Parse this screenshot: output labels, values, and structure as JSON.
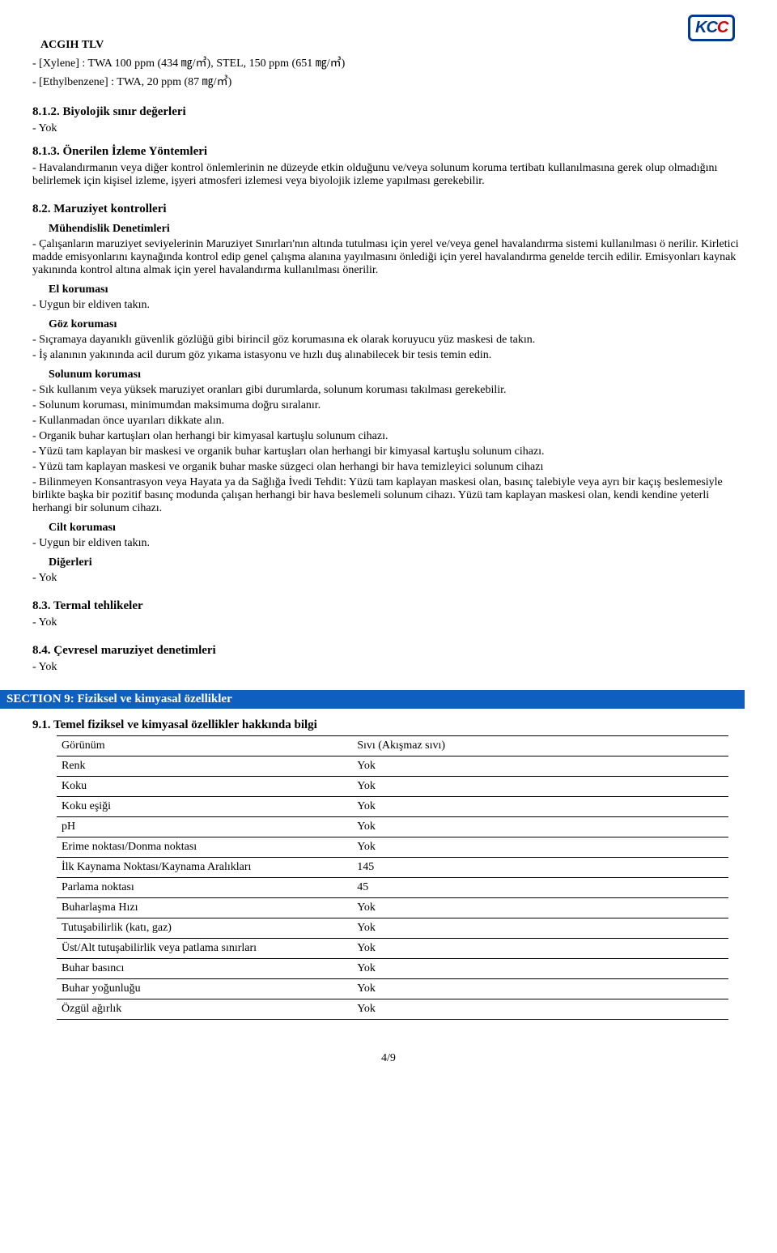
{
  "logo": {
    "k": "K",
    "c1": "C",
    "c2": "C"
  },
  "s81": {
    "tlv_title": "ACGIH TLV",
    "tlv_items": [
      "- [Xylene] : TWA 100 ppm (434 ㎎/㎥), STEL, 150 ppm (651 ㎎/㎥)",
      "- [Ethylbenzene] : TWA, 20 ppm (87 ㎎/㎥)"
    ],
    "s812_title": "8.1.2. Biyolojik sınır değerleri",
    "s812_items": [
      "- Yok"
    ],
    "s813_title": "8.1.3. Önerilen İzleme Yöntemleri",
    "s813_items": [
      "- Havalandırmanın veya diğer kontrol önlemlerinin ne düzeyde etkin olduğunu ve/veya solunum koruma tertibatı kullanılmasına gerek olup olmadığını belirlemek için kişisel izleme, işyeri atmosferi izlemesi veya biyolojik izleme yapılması gerekebilir."
    ]
  },
  "s82": {
    "title": "8.2. Maruziyet kontrolleri",
    "engineering_title": "Mühendislik Denetimleri",
    "engineering_items": [
      "- Çalışanların maruziyet seviyelerinin Maruziyet Sınırları'nın altında tutulması için yerel ve/veya genel havalandırma sistemi kullanılması ö nerilir. Kirletici madde emisyonlarını kaynağında kontrol edip genel çalışma alanına yayılmasını önlediği için yerel havalandırma genelde tercih edilir. Emisyonları kaynak yakınında kontrol altına almak için yerel havalandırma kullanılması önerilir."
    ],
    "hand_title": "El koruması",
    "hand_items": [
      "- Uygun bir eldiven takın."
    ],
    "eye_title": "Göz koruması",
    "eye_items": [
      "- Sıçramaya dayanıklı güvenlik gözlüğü gibi birincil göz korumasına ek olarak koruyucu yüz maskesi de takın.",
      "- İş alanının yakınında acil durum göz yıkama istasyonu ve hızlı duş alınabilecek bir tesis temin edin."
    ],
    "resp_title": "Solunum koruması",
    "resp_items": [
      "- Sık kullanım veya yüksek maruziyet oranları gibi durumlarda, solunum koruması takılması gerekebilir.",
      "- Solunum koruması, minimumdan maksimuma doğru sıralanır.",
      "- Kullanmadan önce uyarıları dikkate alın.",
      "- Organik buhar kartuşları olan herhangi bir kimyasal kartuşlu solunum cihazı.",
      "- Yüzü tam kaplayan bir maskesi ve organik buhar kartuşları olan herhangi bir kimyasal kartuşlu solunum cihazı.",
      "- Yüzü tam kaplayan maskesi ve organik buhar maske süzgeci olan herhangi bir hava temizleyici solunum cihazı",
      "- Bilinmeyen Konsantrasyon veya Hayata ya da Sağlığa İvedi Tehdit: Yüzü tam kaplayan maskesi olan, basınç talebiyle veya ayrı bir kaçış beslemesiyle birlikte başka bir pozitif basınç modunda çalışan herhangi bir hava beslemeli solunum cihazı. Yüzü tam kaplayan maskesi olan, kendi kendine yeterli herhangi bir solunum cihazı."
    ],
    "skin_title": "Cilt koruması",
    "skin_items": [
      "- Uygun bir eldiven takın."
    ],
    "other_title": "Diğerleri",
    "other_items": [
      "- Yok"
    ]
  },
  "s83": {
    "title": "8.3. Termal tehlikeler",
    "items": [
      "- Yok"
    ]
  },
  "s84": {
    "title": "8.4. Çevresel maruziyet denetimleri",
    "items": [
      "- Yok"
    ]
  },
  "section9": {
    "header": "SECTION 9: Fiziksel ve kimyasal özellikler",
    "s91_title": "9.1. Temel fiziksel ve kimyasal özellikler hakkında bilgi",
    "rows": [
      {
        "k": "Görünüm",
        "v": "Sıvı (Akışmaz sıvı)"
      },
      {
        "k": "Renk",
        "v": "Yok"
      },
      {
        "k": "Koku",
        "v": "Yok"
      },
      {
        "k": "Koku eşiği",
        "v": "Yok"
      },
      {
        "k": "pH",
        "v": "Yok"
      },
      {
        "k": "Erime noktası/Donma noktası",
        "v": "Yok"
      },
      {
        "k": "İlk Kaynama Noktası/Kaynama Aralıkları",
        "v": "145"
      },
      {
        "k": "Parlama noktası",
        "v": "45"
      },
      {
        "k": "Buharlaşma Hızı",
        "v": "Yok"
      },
      {
        "k": "Tutuşabilirlik (katı, gaz)",
        "v": "Yok"
      },
      {
        "k": "Üst/Alt tutuşabilirlik veya patlama sınırları",
        "v": "Yok"
      },
      {
        "k": "Buhar basıncı",
        "v": "Yok"
      },
      {
        "k": "Buhar yoğunluğu",
        "v": "Yok"
      },
      {
        "k": "Özgül ağırlık",
        "v": "Yok"
      }
    ]
  },
  "page": "4/9"
}
